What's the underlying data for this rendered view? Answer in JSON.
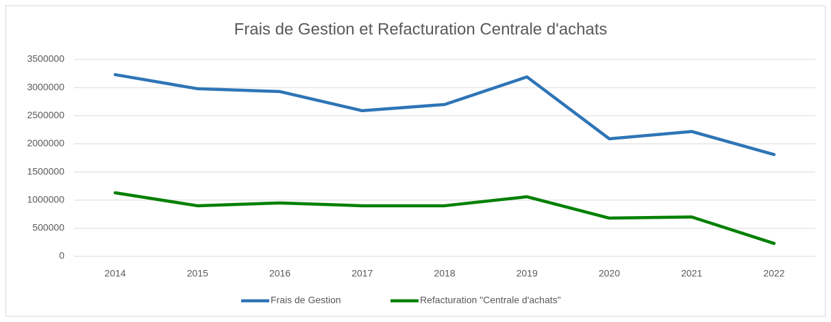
{
  "chart_data": {
    "type": "line",
    "title": "Frais de Gestion et Refacturation Centrale d'achats",
    "categories": [
      "2014",
      "2015",
      "2016",
      "2017",
      "2018",
      "2019",
      "2020",
      "2021",
      "2022"
    ],
    "series": [
      {
        "name": "Frais de Gestion",
        "color": "#2e75b6",
        "values": [
          3230000,
          2980000,
          2930000,
          2590000,
          2700000,
          3190000,
          2090000,
          2220000,
          1810000
        ]
      },
      {
        "name": "Refacturation \"Centrale d'achats\"",
        "color": "#008000",
        "values": [
          1130000,
          900000,
          950000,
          900000,
          900000,
          1060000,
          680000,
          700000,
          230000
        ]
      }
    ],
    "ylim": [
      0,
      3500000
    ],
    "yticks": [
      0,
      500000,
      1000000,
      1500000,
      2000000,
      2500000,
      3000000,
      3500000
    ],
    "grid": true,
    "legend": "bottom"
  }
}
